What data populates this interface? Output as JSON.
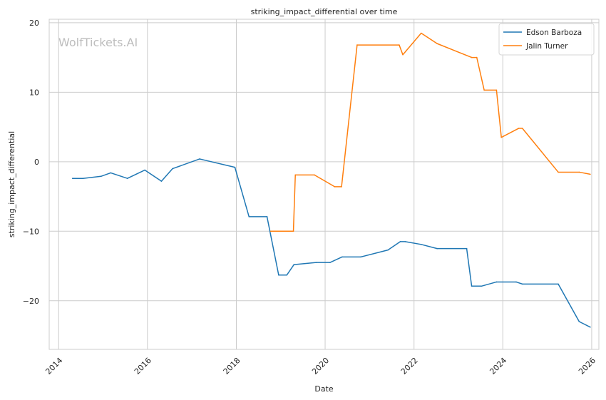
{
  "chart_data": {
    "type": "line",
    "title": "striking_impact_differential over time",
    "xlabel": "Date",
    "ylabel": "striking_impact_differential",
    "watermark": "WolfTickets.AI",
    "xlim": [
      "2013-10-15",
      "2026-03-01"
    ],
    "ylim": [
      -27,
      20.5
    ],
    "x_ticks": [
      "2014",
      "2016",
      "2018",
      "2020",
      "2022",
      "2024",
      "2026"
    ],
    "y_ticks": [
      20,
      10,
      0,
      -10,
      -20
    ],
    "y_tick_labels": [
      "20",
      "10",
      "0",
      "−10",
      "−20"
    ],
    "grid": true,
    "legend_position": "top-right",
    "series": [
      {
        "name": "Edson Barboza",
        "color": "#1f77b4",
        "points": [
          [
            "2014-04-25",
            -2.4
          ],
          [
            "2014-07-20",
            -2.4
          ],
          [
            "2014-12-15",
            -2.1
          ],
          [
            "2015-03-05",
            -1.6
          ],
          [
            "2015-07-20",
            -2.4
          ],
          [
            "2015-12-10",
            -1.2
          ],
          [
            "2016-04-25",
            -2.8
          ],
          [
            "2016-07-25",
            -1.0
          ],
          [
            "2017-03-05",
            0.4
          ],
          [
            "2017-12-20",
            -0.8
          ],
          [
            "2018-04-15",
            -7.9
          ],
          [
            "2018-09-10",
            -7.9
          ],
          [
            "2018-12-15",
            -16.3
          ],
          [
            "2019-02-20",
            -16.3
          ],
          [
            "2019-04-20",
            -14.8
          ],
          [
            "2019-10-20",
            -14.5
          ],
          [
            "2020-02-10",
            -14.5
          ],
          [
            "2020-05-20",
            -13.7
          ],
          [
            "2020-10-20",
            -13.7
          ],
          [
            "2021-06-01",
            -12.7
          ],
          [
            "2021-09-10",
            -11.5
          ],
          [
            "2021-10-20",
            -11.5
          ],
          [
            "2022-03-01",
            -11.9
          ],
          [
            "2022-07-10",
            -12.5
          ],
          [
            "2023-03-10",
            -12.5
          ],
          [
            "2023-04-20",
            -17.9
          ],
          [
            "2023-07-10",
            -17.9
          ],
          [
            "2023-11-10",
            -17.3
          ],
          [
            "2024-04-20",
            -17.3
          ],
          [
            "2024-06-10",
            -17.6
          ],
          [
            "2025-04-01",
            -17.6
          ],
          [
            "2025-09-20",
            -23.0
          ],
          [
            "2025-12-20",
            -23.8
          ]
        ]
      },
      {
        "name": "Jalin Turner",
        "color": "#ff7f0e",
        "points": [
          [
            "2018-10-10",
            -10.0
          ],
          [
            "2019-04-15",
            -10.0
          ],
          [
            "2019-05-01",
            -1.9
          ],
          [
            "2019-10-05",
            -1.9
          ],
          [
            "2020-03-20",
            -3.6
          ],
          [
            "2020-05-15",
            -3.6
          ],
          [
            "2020-09-20",
            16.8
          ],
          [
            "2021-09-01",
            16.8
          ],
          [
            "2021-10-01",
            15.4
          ],
          [
            "2022-03-01",
            18.5
          ],
          [
            "2022-07-10",
            17.0
          ],
          [
            "2023-04-20",
            15.0
          ],
          [
            "2023-06-01",
            15.0
          ],
          [
            "2023-08-01",
            10.3
          ],
          [
            "2023-11-10",
            10.3
          ],
          [
            "2023-12-20",
            3.5
          ],
          [
            "2024-05-10",
            4.8
          ],
          [
            "2024-06-10",
            4.8
          ],
          [
            "2025-04-01",
            -1.5
          ],
          [
            "2025-09-20",
            -1.5
          ],
          [
            "2025-12-20",
            -1.8
          ]
        ]
      }
    ]
  }
}
